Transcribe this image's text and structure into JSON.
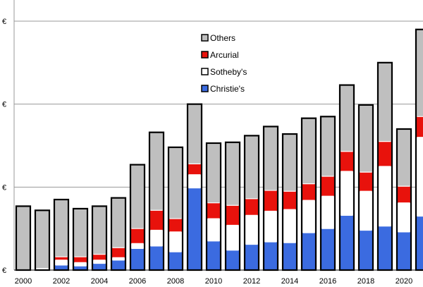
{
  "chart_data": {
    "type": "bar",
    "stacked": true,
    "grid": true,
    "legend_placement": "top-center",
    "ylim": [
      0,
      4
    ],
    "y_ticks": [
      {
        "value": 0,
        "label": "€"
      },
      {
        "value": 1,
        "label": "€"
      },
      {
        "value": 2,
        "label": "€"
      },
      {
        "value": 3,
        "label": "€"
      }
    ],
    "x_tick_labels": [
      "2000",
      "2002",
      "2004",
      "2006",
      "2008",
      "2010",
      "2012",
      "2014",
      "2016",
      "2018",
      "2020"
    ],
    "categories": [
      "2000",
      "2001",
      "2002",
      "2003",
      "2004",
      "2005",
      "2006",
      "2007",
      "2008",
      "2009",
      "2010",
      "2011",
      "2012",
      "2013",
      "2014",
      "2015",
      "2016",
      "2017",
      "2018",
      "2019",
      "2020",
      "2021"
    ],
    "series": [
      {
        "name": "Christie's",
        "color": "#3b6be0",
        "values": [
          0,
          0,
          0.06,
          0.05,
          0.08,
          0.12,
          0.26,
          0.29,
          0.22,
          0.99,
          0.35,
          0.24,
          0.31,
          0.34,
          0.33,
          0.45,
          0.5,
          0.66,
          0.48,
          0.53,
          0.46,
          0.65
        ]
      },
      {
        "name": "Sotheby's",
        "color": "#ffffff",
        "values": [
          0,
          0.02,
          0.06,
          0.04,
          0.04,
          0.03,
          0.06,
          0.19,
          0.24,
          0.16,
          0.27,
          0.3,
          0.35,
          0.37,
          0.4,
          0.39,
          0.39,
          0.53,
          0.47,
          0.72,
          0.35,
          0.95
        ]
      },
      {
        "name": "Arcurial",
        "color": "#e8120c",
        "values": [
          0,
          0,
          0.04,
          0.07,
          0.07,
          0.12,
          0.18,
          0.24,
          0.16,
          0.13,
          0.19,
          0.24,
          0.2,
          0.25,
          0.22,
          0.2,
          0.24,
          0.24,
          0.23,
          0.3,
          0.2,
          0.25
        ]
      },
      {
        "name": "Others",
        "color": "#bfbfbf",
        "values": [
          0.77,
          0.7,
          0.69,
          0.58,
          0.58,
          0.6,
          0.77,
          0.94,
          0.86,
          0.72,
          0.72,
          0.76,
          0.76,
          0.77,
          0.69,
          0.79,
          0.72,
          0.8,
          0.81,
          0.95,
          0.69,
          1.05
        ]
      }
    ]
  }
}
